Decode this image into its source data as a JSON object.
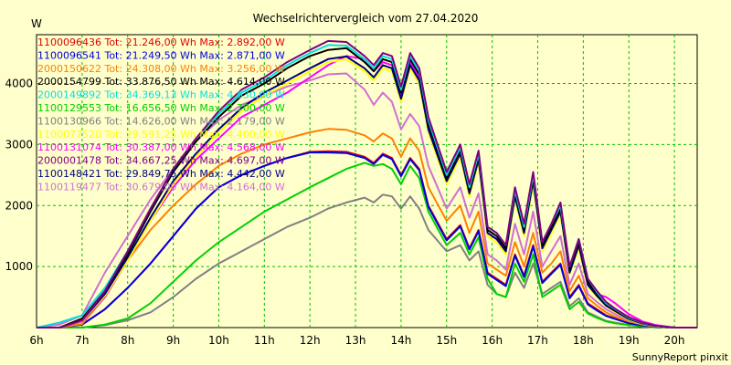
{
  "chart_data": {
    "type": "line",
    "title": "Wechselrichtervergleich vom 27.04.2020",
    "ylabel": "W",
    "xlabel": "",
    "footer": "SunnyReport pinxit",
    "grid": true,
    "legend_position": "top-left",
    "xlim": [
      6,
      20.5
    ],
    "ylim": [
      0,
      4800
    ],
    "x_ticks": [
      {
        "value": 6,
        "label": "6h"
      },
      {
        "value": 7,
        "label": "7h"
      },
      {
        "value": 8,
        "label": "8h"
      },
      {
        "value": 9,
        "label": "9h"
      },
      {
        "value": 10,
        "label": "10h"
      },
      {
        "value": 11,
        "label": "11h"
      },
      {
        "value": 12,
        "label": "12h"
      },
      {
        "value": 13,
        "label": "13h"
      },
      {
        "value": 14,
        "label": "14h"
      },
      {
        "value": 15,
        "label": "15h"
      },
      {
        "value": 16,
        "label": "16h"
      },
      {
        "value": 17,
        "label": "17h"
      },
      {
        "value": 18,
        "label": "18h"
      },
      {
        "value": 19,
        "label": "19h"
      },
      {
        "value": 20,
        "label": "20h"
      }
    ],
    "y_ticks": [
      {
        "value": 1000,
        "label": "1000"
      },
      {
        "value": 2000,
        "label": "2000"
      },
      {
        "value": 3000,
        "label": "3000"
      },
      {
        "value": 4000,
        "label": "4000"
      }
    ],
    "x": [
      6,
      6.5,
      7,
      7.5,
      8,
      8.5,
      9,
      9.5,
      10,
      10.5,
      11,
      11.5,
      12,
      12.4,
      12.8,
      13.2,
      13.4,
      13.6,
      13.8,
      14,
      14.2,
      14.4,
      14.6,
      15,
      15.3,
      15.5,
      15.7,
      15.9,
      16.1,
      16.3,
      16.5,
      16.7,
      16.9,
      17.1,
      17.3,
      17.5,
      17.7,
      17.9,
      18.1,
      18.3,
      18.5,
      18.7,
      19,
      19.3,
      19.6,
      20,
      20.5
    ],
    "series": [
      {
        "legend": "1100096436 Tot: 21.246,00 Wh Max: 2.892,00 W",
        "color": "#e00000",
        "values": [
          0,
          0,
          50,
          300,
          650,
          1050,
          1500,
          1950,
          2300,
          2500,
          2650,
          2780,
          2880,
          2890,
          2880,
          2800,
          2700,
          2850,
          2780,
          2500,
          2780,
          2600,
          2000,
          1450,
          1680,
          1300,
          1600,
          900,
          800,
          700,
          1200,
          850,
          1350,
          750,
          900,
          1050,
          500,
          700,
          400,
          300,
          200,
          150,
          80,
          40,
          15,
          0,
          0
        ]
      },
      {
        "legend": "1100096541 Tot: 21.249,50 Wh Max: 2.871,00 W",
        "color": "#0000e0",
        "values": [
          0,
          0,
          50,
          300,
          650,
          1050,
          1500,
          1950,
          2300,
          2500,
          2650,
          2780,
          2870,
          2870,
          2860,
          2780,
          2680,
          2830,
          2760,
          2480,
          2760,
          2580,
          1980,
          1430,
          1660,
          1280,
          1580,
          880,
          780,
          680,
          1180,
          830,
          1330,
          730,
          880,
          1030,
          480,
          680,
          380,
          280,
          190,
          140,
          70,
          35,
          10,
          0,
          0
        ]
      },
      {
        "legend": "2000150622 Tot: 24.308,00 Wh Max: 3.256,00 W",
        "color": "#ff8000",
        "values": [
          0,
          0,
          60,
          500,
          1100,
          1600,
          2000,
          2350,
          2650,
          2850,
          3000,
          3100,
          3200,
          3256,
          3240,
          3150,
          3050,
          3180,
          3100,
          2800,
          3100,
          2900,
          2300,
          1750,
          2000,
          1550,
          1900,
          1050,
          950,
          850,
          1400,
          1000,
          1550,
          900,
          1050,
          1250,
          600,
          850,
          480,
          360,
          250,
          180,
          100,
          50,
          20,
          0,
          0
        ]
      },
      {
        "legend": "2000154799 Tot: 33.876,50 Wh Max: 4.614,00 W",
        "color": "#000000",
        "values": [
          0,
          0,
          150,
          600,
          1200,
          1900,
          2550,
          3050,
          3450,
          3800,
          4000,
          4250,
          4450,
          4550,
          4580,
          4350,
          4200,
          4400,
          4350,
          3850,
          4400,
          4150,
          3350,
          2450,
          2900,
          2250,
          2800,
          1600,
          1500,
          1300,
          2200,
          1600,
          2450,
          1350,
          1650,
          1950,
          950,
          1400,
          750,
          550,
          380,
          280,
          150,
          70,
          25,
          0,
          0
        ]
      },
      {
        "legend": "2000149892 Tot: 34.369,13 Wh Max: 4.630,00 W",
        "color": "#00e0e0",
        "values": [
          0,
          80,
          200,
          650,
          1250,
          1950,
          2600,
          3100,
          3500,
          3850,
          4050,
          4300,
          4500,
          4630,
          4620,
          4400,
          4250,
          4450,
          4400,
          3900,
          4450,
          4200,
          3400,
          2500,
          2950,
          2300,
          2850,
          1650,
          1550,
          1350,
          2250,
          1650,
          2500,
          1400,
          1700,
          2000,
          1000,
          1450,
          800,
          580,
          400,
          300,
          160,
          75,
          30,
          0,
          0
        ]
      },
      {
        "legend": "1100129553 Tot: 16.656,50 Wh Max: 2.700,00 W",
        "color": "#00d000",
        "values": [
          0,
          0,
          0,
          50,
          150,
          400,
          750,
          1100,
          1400,
          1650,
          1900,
          2100,
          2300,
          2450,
          2600,
          2700,
          2650,
          2680,
          2600,
          2350,
          2650,
          2450,
          1900,
          1350,
          1550,
          1200,
          1480,
          800,
          550,
          500,
          1050,
          750,
          1200,
          500,
          600,
          700,
          300,
          420,
          230,
          160,
          100,
          70,
          40,
          20,
          5,
          0,
          0
        ]
      },
      {
        "legend": "1100130966 Tot: 14.626,00 Wh Max: 2.179,00 W",
        "color": "#808080",
        "values": [
          0,
          0,
          0,
          40,
          120,
          250,
          500,
          800,
          1050,
          1250,
          1450,
          1650,
          1800,
          1950,
          2050,
          2130,
          2050,
          2179,
          2150,
          1950,
          2150,
          1950,
          1600,
          1250,
          1350,
          1100,
          1250,
          700,
          550,
          500,
          900,
          650,
          1050,
          550,
          650,
          750,
          350,
          480,
          250,
          180,
          110,
          80,
          45,
          20,
          5,
          0,
          0
        ]
      },
      {
        "legend": "1100131074 Tot: 30.387,00 Wh Max: 4.568,00 W",
        "color": "#ff00ff",
        "values": [
          0,
          0,
          100,
          500,
          1100,
          1750,
          2300,
          2750,
          3100,
          3450,
          3650,
          3850,
          4100,
          4300,
          4450,
          4400,
          4200,
          4350,
          4300,
          3800,
          4350,
          4100,
          3300,
          2400,
          2850,
          2200,
          2750,
          1550,
          1450,
          1250,
          2150,
          1550,
          2400,
          1300,
          1600,
          1900,
          900,
          1350,
          700,
          550,
          500,
          400,
          220,
          100,
          40,
          0,
          0
        ]
      },
      {
        "legend": "2000001478 Tot: 34.667,25 Wh Max: 4.697,00 W",
        "color": "#800080",
        "values": [
          0,
          0,
          120,
          600,
          1250,
          1950,
          2600,
          3100,
          3550,
          3900,
          4100,
          4350,
          4550,
          4697,
          4680,
          4450,
          4300,
          4500,
          4450,
          3950,
          4500,
          4250,
          3450,
          2550,
          3000,
          2350,
          2900,
          1650,
          1550,
          1350,
          2300,
          1700,
          2550,
          1400,
          1700,
          2050,
          1000,
          1450,
          800,
          600,
          420,
          310,
          170,
          80,
          30,
          0,
          0
        ]
      },
      {
        "legend": "1100148421 Tot: 29.849,75 Wh Max: 4.442,00 W",
        "color": "#000080",
        "values": [
          0,
          0,
          120,
          550,
          1150,
          1800,
          2400,
          2850,
          3250,
          3600,
          3850,
          4050,
          4250,
          4400,
          4442,
          4250,
          4100,
          4300,
          4250,
          3750,
          4300,
          4050,
          3250,
          2400,
          2850,
          2200,
          2750,
          1550,
          1450,
          1250,
          2150,
          1550,
          2400,
          1300,
          1600,
          1900,
          900,
          1350,
          700,
          520,
          360,
          270,
          140,
          65,
          25,
          0,
          0
        ]
      },
      {
        "legend": "1100119477 Tot: 30.679,00 Wh Max: 4.164,00 W",
        "color": "#d070d0",
        "values": [
          0,
          50,
          200,
          900,
          1500,
          2100,
          2600,
          3050,
          3400,
          3650,
          3800,
          3950,
          4050,
          4150,
          4164,
          3900,
          3650,
          3850,
          3700,
          3250,
          3500,
          3300,
          2650,
          1950,
          2300,
          1800,
          2200,
          1200,
          1100,
          950,
          1700,
          1200,
          1900,
          1000,
          1250,
          1500,
          700,
          1050,
          550,
          420,
          300,
          220,
          120,
          55,
          20,
          0,
          0
        ]
      },
      {
        "legend": "1100077520 Tot: 29.591,25 Wh Max: 4.400,00 W",
        "color": "#ffff00",
        "values": [
          0,
          0,
          110,
          520,
          1100,
          1750,
          2350,
          2800,
          3200,
          3550,
          3800,
          4000,
          4200,
          4350,
          4400,
          4200,
          4050,
          4250,
          4200,
          3700,
          4250,
          4000,
          3200,
          2350,
          2800,
          2150,
          2700,
          1500,
          1400,
          1200,
          2100,
          1500,
          2350,
          1250,
          1550,
          1850,
          880,
          1300,
          680,
          500,
          350,
          260,
          130,
          60,
          20,
          0,
          0
        ]
      }
    ],
    "legend_order": [
      0,
      1,
      2,
      3,
      4,
      5,
      6,
      11,
      7,
      8,
      9,
      10
    ]
  }
}
